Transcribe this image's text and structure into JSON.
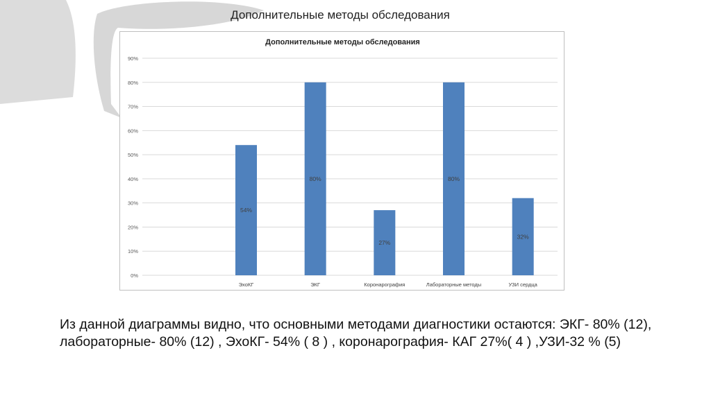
{
  "slide": {
    "title": "Дополнительные методы обследования",
    "caption": "Из данной диаграммы видно, что основными методами диагностики остаются: ЭКГ- 80% (12), лабораторные- 80% (12) , ЭхоКГ- 54% ( 8 ) , коронарография- КАГ 27%( 4 ) ,УЗИ-32 % (5)"
  },
  "colors": {
    "bar": "#4f81bd",
    "grid": "#d9d9d9",
    "decoration": "#d9d9d9"
  },
  "chart_data": {
    "type": "bar",
    "title": "Дополнительные методы обследования",
    "categories": [
      "",
      "ЭхоКГ",
      "ЭКГ",
      "Коронарография",
      "Лабораторные методы",
      "УЗИ сердца"
    ],
    "values": [
      null,
      54,
      80,
      27,
      80,
      32
    ],
    "data_labels": [
      "",
      "54%",
      "80%",
      "27%",
      "80%",
      "32%"
    ],
    "ylim": [
      0,
      90
    ],
    "yticks": [
      "0%",
      "10%",
      "20%",
      "30%",
      "40%",
      "50%",
      "60%",
      "70%",
      "80%",
      "90%"
    ],
    "grid": true
  }
}
